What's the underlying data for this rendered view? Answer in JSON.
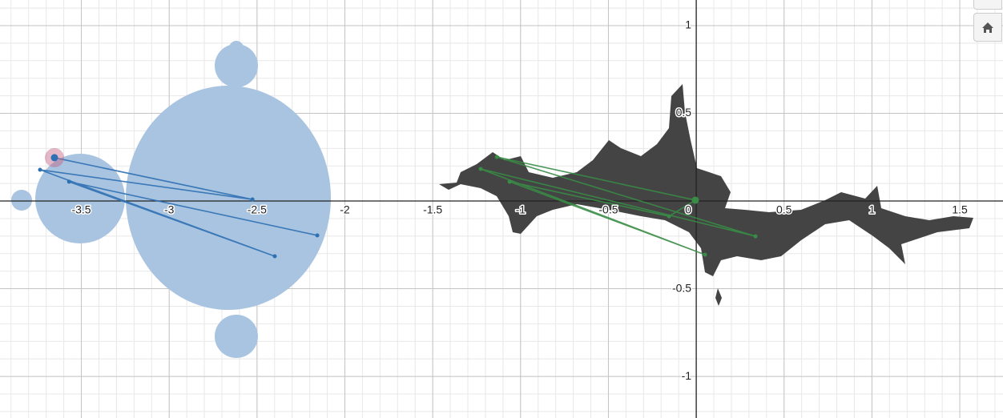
{
  "chart_data": {
    "type": "scatter",
    "xlim": [
      -3.963,
      1.746
    ],
    "ylim": [
      -1.237,
      1.146
    ],
    "xticks": [
      -3.5,
      -3,
      -2.5,
      -2,
      -1.5,
      -1,
      -0.5,
      0,
      0.5,
      1,
      1.5
    ],
    "yticks": [
      -1,
      -0.5,
      0.5,
      1
    ],
    "grid": true,
    "series": [
      {
        "color": "#2d70b3",
        "x": [
          -3.653,
          -2.526,
          -3.735,
          -2.399,
          -3.57,
          -2.157
        ],
        "values": [
          0.247,
          0.009,
          0.178,
          -0.315,
          0.11,
          -0.196
        ]
      },
      {
        "color": "#388c46",
        "x": [
          -0.005,
          -1.135,
          0.337,
          -1.227,
          0.05,
          -1.062,
          -0.155,
          -0.005
        ],
        "values": [
          0.005,
          0.251,
          -0.201,
          0.183,
          -0.306,
          0.11,
          -0.087,
          0.005
        ]
      }
    ]
  }
}
